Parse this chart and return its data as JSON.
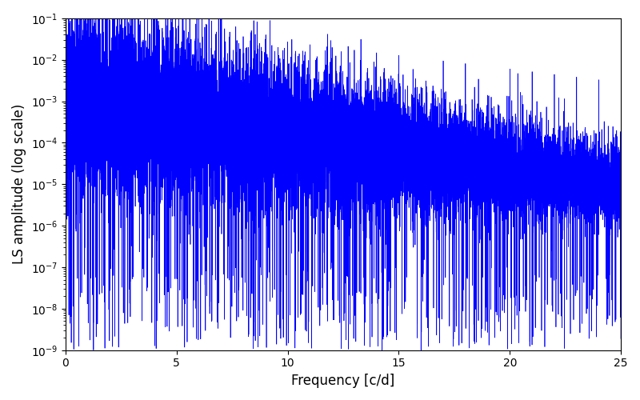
{
  "title": "",
  "xlabel": "Frequency [c/d]",
  "ylabel": "LS amplitude (log scale)",
  "xlim": [
    0,
    25
  ],
  "ylim_low": 1e-09,
  "ylim_high": 0.1,
  "yscale": "log",
  "line_color": "#0000FF",
  "line_width": 0.5,
  "background_color": "#ffffff",
  "figsize": [
    8.0,
    5.0
  ],
  "dpi": 100,
  "freq_max": 25.0,
  "n_points": 15000,
  "seed": 12345
}
